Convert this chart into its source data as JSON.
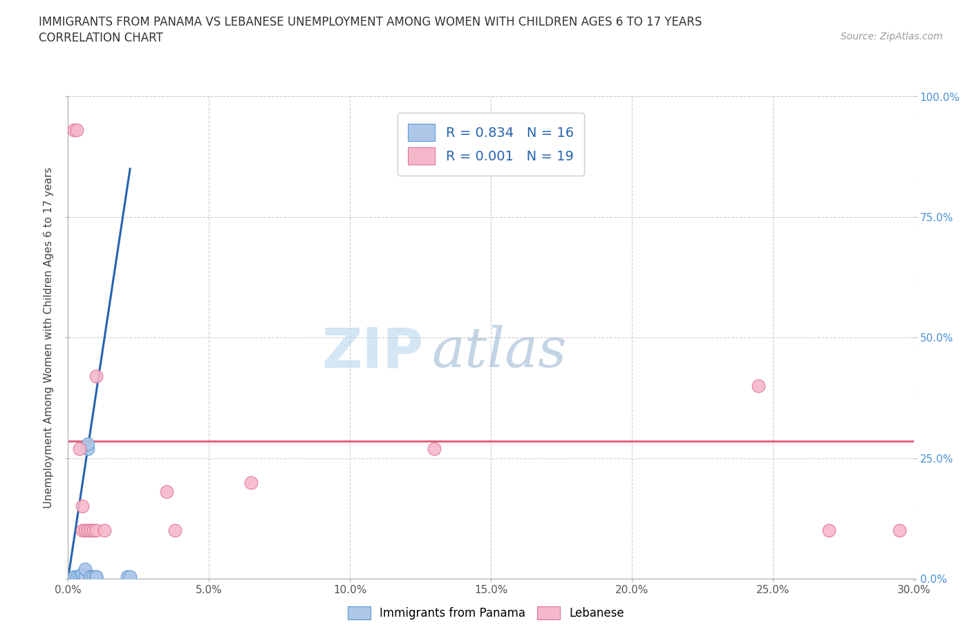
{
  "title": "IMMIGRANTS FROM PANAMA VS LEBANESE UNEMPLOYMENT AMONG WOMEN WITH CHILDREN AGES 6 TO 17 YEARS",
  "subtitle": "CORRELATION CHART",
  "source": "Source: ZipAtlas.com",
  "ylabel": "Unemployment Among Women with Children Ages 6 to 17 years",
  "xlim": [
    0.0,
    0.3
  ],
  "ylim": [
    0.0,
    1.0
  ],
  "xticks": [
    0.0,
    0.05,
    0.1,
    0.15,
    0.2,
    0.25,
    0.3
  ],
  "yticks": [
    0.0,
    0.25,
    0.5,
    0.75,
    1.0
  ],
  "xtick_labels": [
    "0.0%",
    "5.0%",
    "10.0%",
    "15.0%",
    "20.0%",
    "25.0%",
    "30.0%"
  ],
  "ytick_labels_right": [
    "0.0%",
    "25.0%",
    "50.0%",
    "75.0%",
    "100.0%"
  ],
  "panama_color": "#aec6e8",
  "lebanese_color": "#f5b8ca",
  "panama_edge_color": "#5b9bd5",
  "lebanese_edge_color": "#e07090",
  "panama_trend_color": "#2563ae",
  "lebanese_trend_color": "#e05878",
  "panama_R": 0.834,
  "panama_N": 16,
  "lebanese_R": 0.001,
  "lebanese_N": 19,
  "watermark_zip": "ZIP",
  "watermark_atlas": "atlas",
  "background_color": "#ffffff",
  "grid_color": "#cccccc",
  "panama_x": [
    0.002,
    0.003,
    0.004,
    0.005,
    0.005,
    0.006,
    0.006,
    0.007,
    0.007,
    0.008,
    0.008,
    0.009,
    0.01,
    0.01,
    0.021,
    0.022
  ],
  "panama_y": [
    0.005,
    0.005,
    0.005,
    0.005,
    0.01,
    0.005,
    0.02,
    0.27,
    0.28,
    0.005,
    0.005,
    0.005,
    0.005,
    0.005,
    0.005,
    0.005
  ],
  "lebanese_x": [
    0.002,
    0.003,
    0.004,
    0.005,
    0.005,
    0.006,
    0.007,
    0.008,
    0.009,
    0.01,
    0.01,
    0.013,
    0.035,
    0.038,
    0.065,
    0.13,
    0.245,
    0.27,
    0.295
  ],
  "lebanese_y": [
    0.93,
    0.93,
    0.27,
    0.1,
    0.15,
    0.1,
    0.1,
    0.1,
    0.1,
    0.1,
    0.42,
    0.1,
    0.18,
    0.1,
    0.2,
    0.27,
    0.4,
    0.1,
    0.1
  ],
  "panama_trend_x": [
    0.0,
    0.022
  ],
  "panama_trend_y": [
    0.0,
    0.85
  ],
  "lebanese_trend_y_const": 0.285
}
